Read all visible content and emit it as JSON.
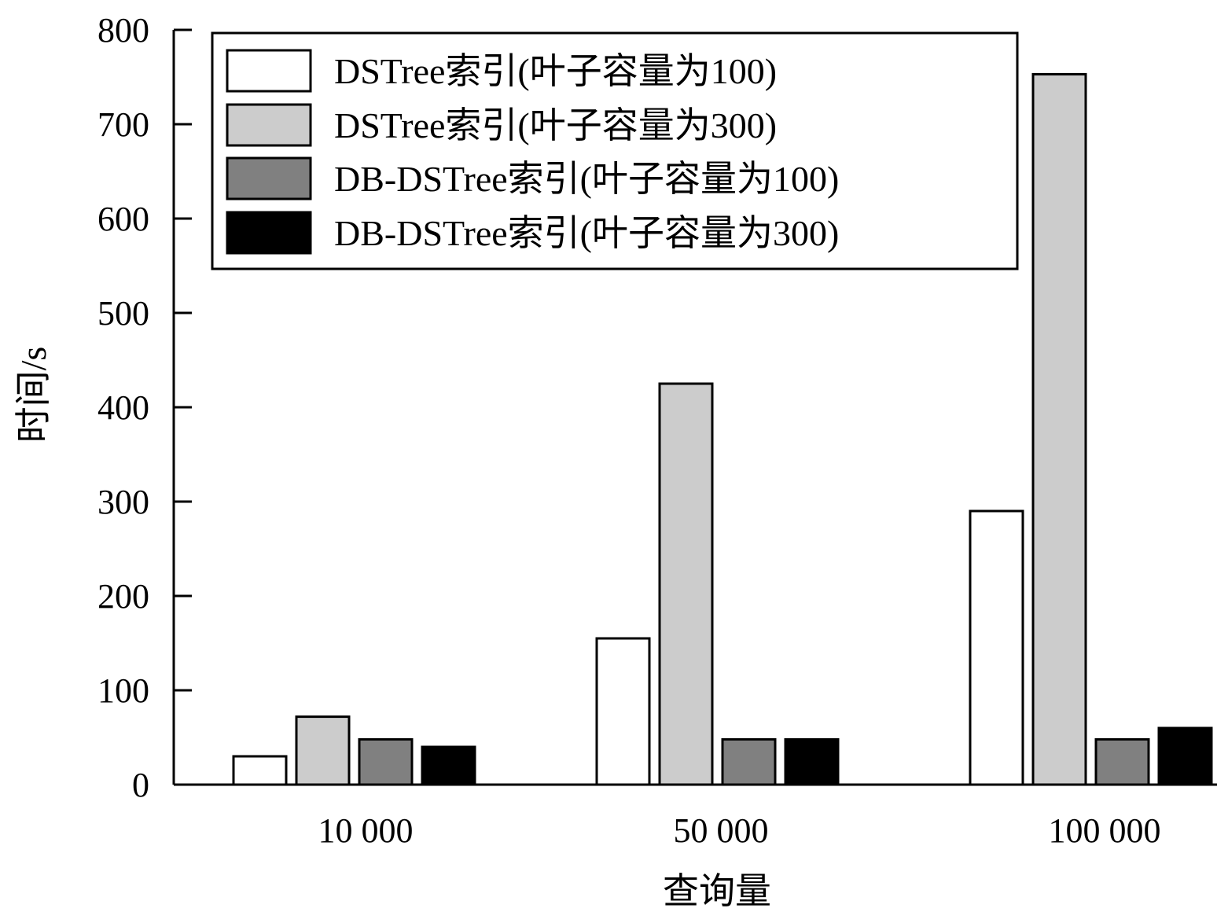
{
  "chart_data": {
    "type": "bar",
    "title": "",
    "xlabel": "查询量",
    "ylabel": "时间/s",
    "categories": [
      "10 000",
      "50 000",
      "100 000"
    ],
    "series": [
      {
        "name": "DSTree索引(叶子容量为100)",
        "values": [
          30,
          155,
          290
        ],
        "color": "#ffffff"
      },
      {
        "name": "DSTree索引(叶子容量为300)",
        "values": [
          72,
          425,
          753
        ],
        "color": "#cccccc"
      },
      {
        "name": "DB-DSTree索引(叶子容量为100)",
        "values": [
          48,
          48,
          48
        ],
        "color": "#808080"
      },
      {
        "name": "DB-DSTree索引(叶子容量为300)",
        "values": [
          40,
          48,
          60
        ],
        "color": "#000000"
      }
    ],
    "ylim": [
      0,
      800
    ],
    "yticks": [
      "0",
      "100",
      "200",
      "300",
      "400",
      "500",
      "600",
      "700",
      "800"
    ],
    "grid": false,
    "legend_position": "top-center"
  }
}
